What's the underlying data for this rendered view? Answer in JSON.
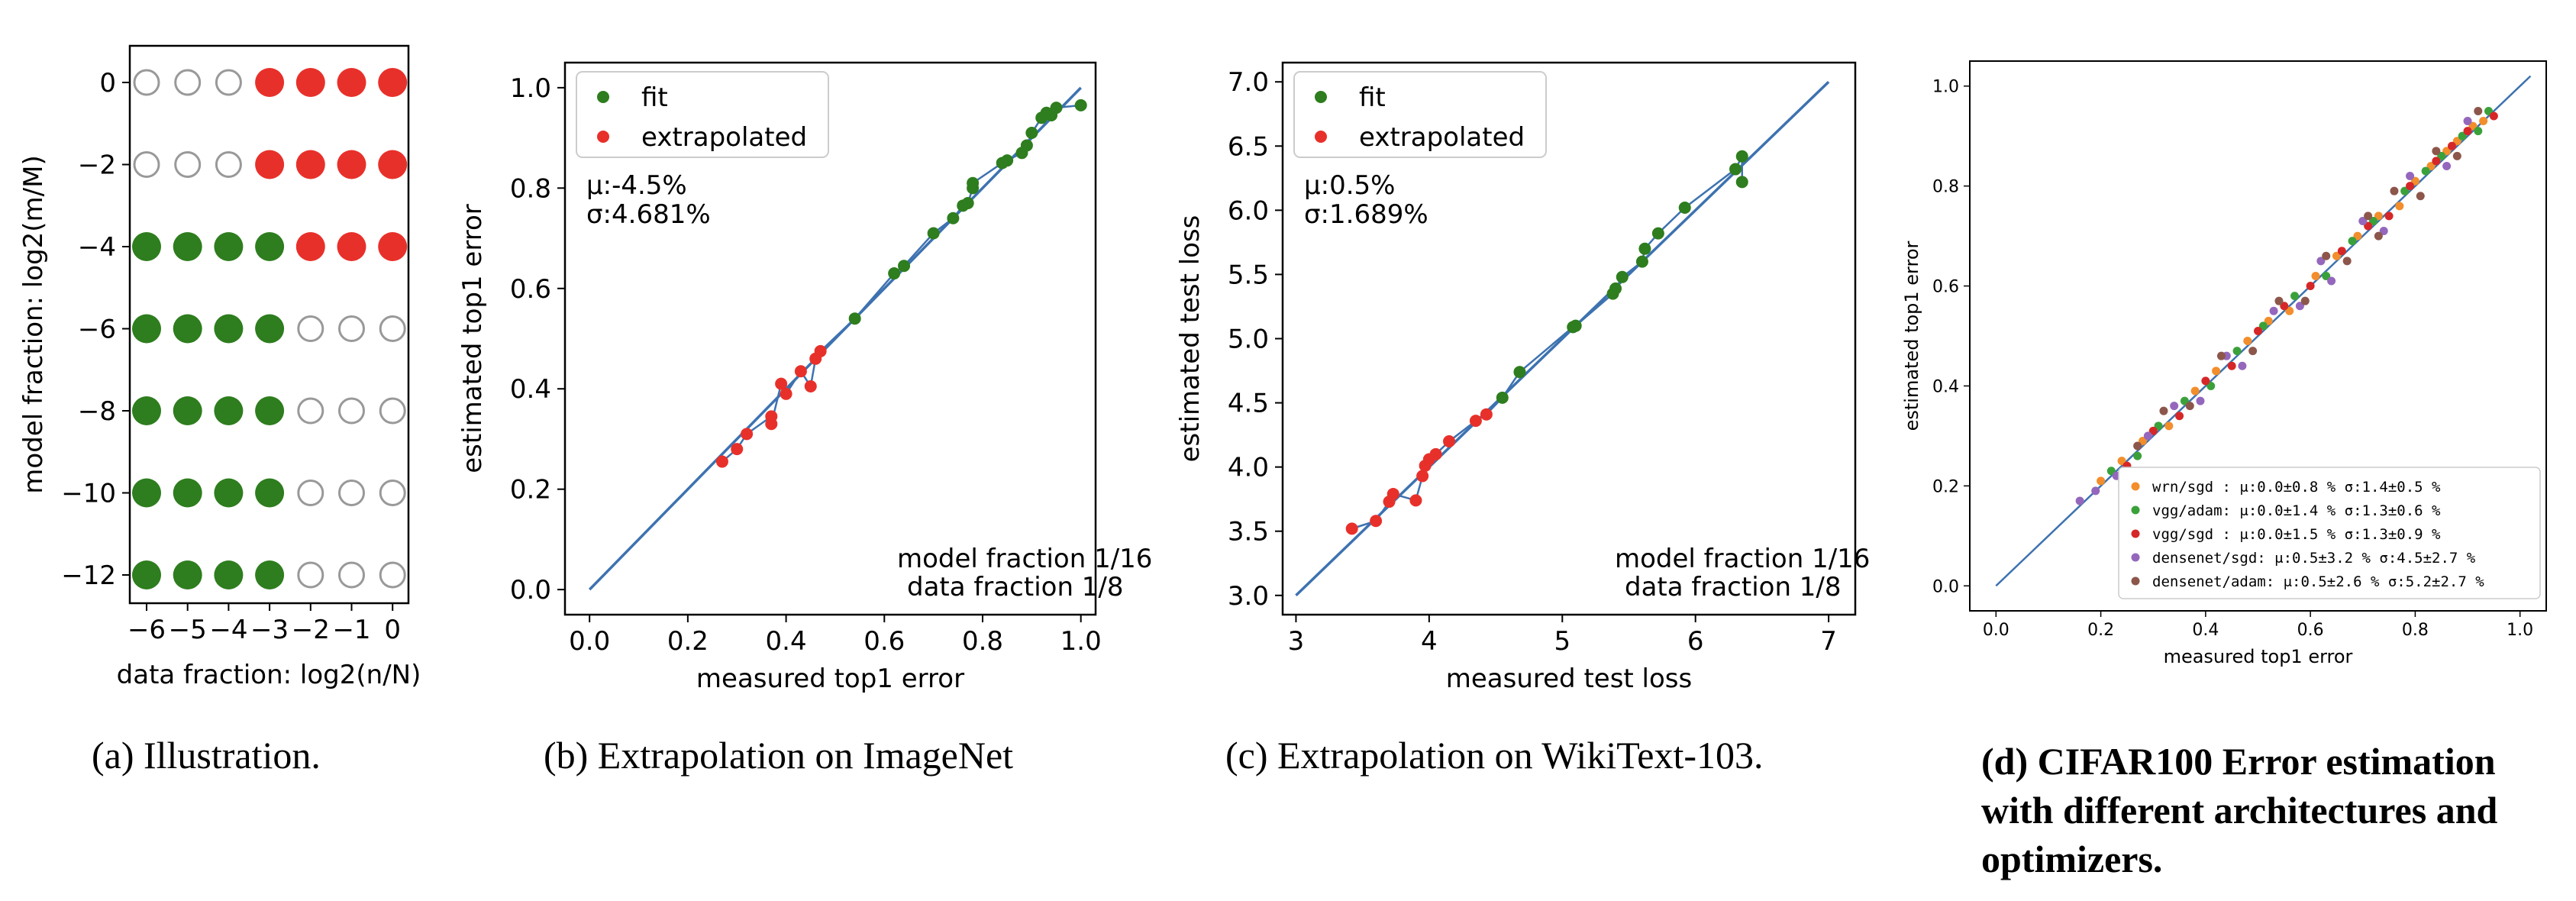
{
  "colors": {
    "fit": "#2e7d1e",
    "extrapolated": "#e8302a",
    "line": "#3d72b0",
    "empty": "#999999"
  },
  "captions": [
    "(a) Illustration.",
    "(b) Extrapolation on ImageNet",
    "(c) Extrapolation on WikiText-103.",
    "(d) CIFAR100 Error estimation with different architectures and optimizers."
  ],
  "chart_data": [
    {
      "type": "scatter",
      "xlabel": "data fraction: log2(n/N)",
      "ylabel": "model fraction: log2(m/M)",
      "x_ticks": [
        "−6",
        "−5",
        "−4",
        "−3",
        "−2",
        "−1",
        "0"
      ],
      "y_ticks": [
        "0",
        "−2",
        "−4",
        "−6",
        "−8",
        "−10",
        "−12"
      ],
      "grid_rows": [
        {
          "y": 0,
          "cells": [
            "empty",
            "empty",
            "empty",
            "extrapolated",
            "extrapolated",
            "extrapolated",
            "extrapolated"
          ]
        },
        {
          "y": -2,
          "cells": [
            "empty",
            "empty",
            "empty",
            "extrapolated",
            "extrapolated",
            "extrapolated",
            "extrapolated"
          ]
        },
        {
          "y": -4,
          "cells": [
            "fit",
            "fit",
            "fit",
            "fit",
            "extrapolated",
            "extrapolated",
            "extrapolated"
          ]
        },
        {
          "y": -6,
          "cells": [
            "fit",
            "fit",
            "fit",
            "fit",
            "empty",
            "empty",
            "empty"
          ]
        },
        {
          "y": -8,
          "cells": [
            "fit",
            "fit",
            "fit",
            "fit",
            "empty",
            "empty",
            "empty"
          ]
        },
        {
          "y": -10,
          "cells": [
            "fit",
            "fit",
            "fit",
            "fit",
            "empty",
            "empty",
            "empty"
          ]
        },
        {
          "y": -12,
          "cells": [
            "fit",
            "fit",
            "fit",
            "fit",
            "empty",
            "empty",
            "empty"
          ]
        }
      ]
    },
    {
      "type": "scatter",
      "xlabel": "measured top1 error",
      "ylabel": "estimated top1 error",
      "xlim": [
        -0.05,
        1.03
      ],
      "ylim": [
        -0.05,
        1.05
      ],
      "x_ticks": [
        "0.0",
        "0.2",
        "0.4",
        "0.6",
        "0.8",
        "1.0"
      ],
      "y_ticks": [
        "0.0",
        "0.2",
        "0.4",
        "0.6",
        "0.8",
        "1.0"
      ],
      "legend": [
        "fit",
        "extrapolated"
      ],
      "stats": [
        "μ:-4.5%",
        "σ:4.681%"
      ],
      "annotation": [
        "model fraction 1/16",
        "data fraction 1/8"
      ],
      "fit": [
        [
          0.54,
          0.54
        ],
        [
          0.62,
          0.63
        ],
        [
          0.64,
          0.645
        ],
        [
          0.7,
          0.71
        ],
        [
          0.74,
          0.74
        ],
        [
          0.76,
          0.765
        ],
        [
          0.77,
          0.77
        ],
        [
          0.78,
          0.8
        ],
        [
          0.78,
          0.81
        ],
        [
          0.84,
          0.85
        ],
        [
          0.85,
          0.855
        ],
        [
          0.88,
          0.87
        ],
        [
          0.89,
          0.885
        ],
        [
          0.9,
          0.91
        ],
        [
          0.92,
          0.94
        ],
        [
          0.93,
          0.95
        ],
        [
          0.94,
          0.945
        ],
        [
          0.95,
          0.96
        ],
        [
          1.0,
          0.965
        ]
      ],
      "extrapolated": [
        [
          0.27,
          0.255
        ],
        [
          0.3,
          0.28
        ],
        [
          0.32,
          0.31
        ],
        [
          0.37,
          0.345
        ],
        [
          0.37,
          0.33
        ],
        [
          0.39,
          0.41
        ],
        [
          0.4,
          0.39
        ],
        [
          0.43,
          0.435
        ],
        [
          0.45,
          0.405
        ],
        [
          0.46,
          0.46
        ],
        [
          0.47,
          0.475
        ]
      ]
    },
    {
      "type": "scatter",
      "xlabel": "measured test loss",
      "ylabel": "estimated test loss",
      "xlim": [
        2.9,
        7.2
      ],
      "ylim": [
        2.85,
        7.15
      ],
      "x_ticks": [
        "3",
        "4",
        "5",
        "6",
        "7"
      ],
      "y_ticks": [
        "3.0",
        "3.5",
        "4.0",
        "4.5",
        "5.0",
        "5.5",
        "6.0",
        "6.5",
        "7.0"
      ],
      "legend": [
        "fit",
        "extrapolated"
      ],
      "stats": [
        "μ:0.5%",
        "σ:1.689%"
      ],
      "annotation": [
        "model fraction 1/16",
        "data fraction 1/8"
      ],
      "fit": [
        [
          4.55,
          4.54
        ],
        [
          4.68,
          4.74
        ],
        [
          5.08,
          5.09
        ],
        [
          5.1,
          5.1
        ],
        [
          5.38,
          5.35
        ],
        [
          5.4,
          5.39
        ],
        [
          5.45,
          5.48
        ],
        [
          5.6,
          5.6
        ],
        [
          5.62,
          5.7
        ],
        [
          5.72,
          5.82
        ],
        [
          5.92,
          6.02
        ],
        [
          6.3,
          6.32
        ],
        [
          6.35,
          6.42
        ],
        [
          6.35,
          6.22
        ]
      ],
      "extrapolated": [
        [
          3.42,
          3.52
        ],
        [
          3.6,
          3.58
        ],
        [
          3.7,
          3.73
        ],
        [
          3.73,
          3.79
        ],
        [
          3.9,
          3.74
        ],
        [
          3.95,
          3.93
        ],
        [
          3.97,
          4.01
        ],
        [
          4.0,
          4.06
        ],
        [
          4.05,
          4.1
        ],
        [
          4.15,
          4.2
        ],
        [
          4.35,
          4.36
        ],
        [
          4.43,
          4.41
        ]
      ]
    },
    {
      "type": "scatter",
      "xlabel": "measured top1 error",
      "ylabel": "estimated top1 error",
      "xlim": [
        -0.05,
        1.05
      ],
      "ylim": [
        -0.05,
        1.05
      ],
      "x_ticks": [
        "0.0",
        "0.2",
        "0.4",
        "0.6",
        "0.8",
        "1.0"
      ],
      "y_ticks": [
        "0.0",
        "0.2",
        "0.4",
        "0.6",
        "0.8",
        "1.0"
      ],
      "legend": [
        {
          "name": "wrn/sgd :  μ:0.0±0.8 %  σ:1.4±0.5 %",
          "color": "#f28e2b"
        },
        {
          "name": "vgg/adam:  μ:0.0±1.4 %  σ:1.3±0.6 %",
          "color": "#3aa13a"
        },
        {
          "name": "vgg/sgd :  μ:0.0±1.5 %  σ:1.3±0.9 %",
          "color": "#d62728"
        },
        {
          "name": "densenet/sgd:  μ:0.5±3.2 %  σ:4.5±2.7 %",
          "color": "#9467bd"
        },
        {
          "name": "densenet/adam:  μ:0.5±2.6 %  σ:5.2±2.7 %",
          "color": "#8c564b"
        }
      ],
      "series_points": [
        [
          [
            0.2,
            0.21
          ],
          [
            0.24,
            0.25
          ],
          [
            0.28,
            0.29
          ],
          [
            0.33,
            0.32
          ],
          [
            0.38,
            0.39
          ],
          [
            0.42,
            0.43
          ],
          [
            0.48,
            0.49
          ],
          [
            0.52,
            0.53
          ],
          [
            0.56,
            0.55
          ],
          [
            0.61,
            0.62
          ],
          [
            0.65,
            0.66
          ],
          [
            0.69,
            0.7
          ],
          [
            0.73,
            0.74
          ],
          [
            0.77,
            0.76
          ],
          [
            0.8,
            0.81
          ],
          [
            0.83,
            0.84
          ],
          [
            0.86,
            0.87
          ],
          [
            0.88,
            0.89
          ],
          [
            0.91,
            0.92
          ],
          [
            0.93,
            0.93
          ]
        ],
        [
          [
            0.22,
            0.23
          ],
          [
            0.27,
            0.26
          ],
          [
            0.31,
            0.32
          ],
          [
            0.36,
            0.37
          ],
          [
            0.41,
            0.4
          ],
          [
            0.46,
            0.47
          ],
          [
            0.51,
            0.52
          ],
          [
            0.57,
            0.58
          ],
          [
            0.63,
            0.62
          ],
          [
            0.68,
            0.69
          ],
          [
            0.72,
            0.73
          ],
          [
            0.78,
            0.79
          ],
          [
            0.82,
            0.83
          ],
          [
            0.85,
            0.86
          ],
          [
            0.89,
            0.9
          ],
          [
            0.92,
            0.91
          ],
          [
            0.94,
            0.95
          ]
        ],
        [
          [
            0.25,
            0.24
          ],
          [
            0.3,
            0.31
          ],
          [
            0.35,
            0.34
          ],
          [
            0.4,
            0.41
          ],
          [
            0.45,
            0.44
          ],
          [
            0.5,
            0.51
          ],
          [
            0.55,
            0.56
          ],
          [
            0.6,
            0.6
          ],
          [
            0.66,
            0.67
          ],
          [
            0.71,
            0.72
          ],
          [
            0.75,
            0.74
          ],
          [
            0.79,
            0.8
          ],
          [
            0.84,
            0.85
          ],
          [
            0.87,
            0.88
          ],
          [
            0.9,
            0.91
          ],
          [
            0.95,
            0.94
          ]
        ],
        [
          [
            0.16,
            0.17
          ],
          [
            0.19,
            0.19
          ],
          [
            0.23,
            0.22
          ],
          [
            0.29,
            0.3
          ],
          [
            0.34,
            0.36
          ],
          [
            0.39,
            0.37
          ],
          [
            0.44,
            0.46
          ],
          [
            0.47,
            0.44
          ],
          [
            0.53,
            0.55
          ],
          [
            0.58,
            0.56
          ],
          [
            0.62,
            0.65
          ],
          [
            0.64,
            0.61
          ],
          [
            0.7,
            0.73
          ],
          [
            0.74,
            0.71
          ],
          [
            0.79,
            0.82
          ],
          [
            0.86,
            0.84
          ],
          [
            0.9,
            0.93
          ]
        ],
        [
          [
            0.27,
            0.28
          ],
          [
            0.32,
            0.35
          ],
          [
            0.37,
            0.36
          ],
          [
            0.43,
            0.46
          ],
          [
            0.49,
            0.47
          ],
          [
            0.54,
            0.57
          ],
          [
            0.59,
            0.57
          ],
          [
            0.63,
            0.66
          ],
          [
            0.67,
            0.65
          ],
          [
            0.71,
            0.74
          ],
          [
            0.73,
            0.7
          ],
          [
            0.76,
            0.79
          ],
          [
            0.81,
            0.78
          ],
          [
            0.84,
            0.87
          ],
          [
            0.88,
            0.86
          ],
          [
            0.92,
            0.95
          ]
        ]
      ]
    }
  ]
}
